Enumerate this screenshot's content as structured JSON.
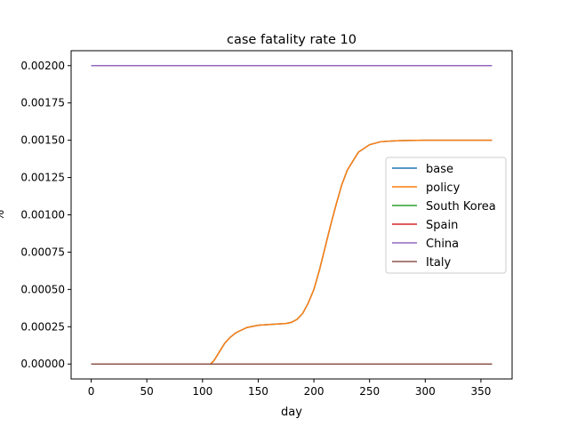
{
  "chart_data": {
    "type": "line",
    "title": "case fatality rate 10",
    "xlabel": "day",
    "ylabel": "%",
    "xlim": [
      -18,
      378
    ],
    "ylim": [
      -0.0001,
      0.0021
    ],
    "xticks": [
      0,
      50,
      100,
      150,
      200,
      250,
      300,
      350
    ],
    "yticks": [
      0.0,
      0.00025,
      0.0005,
      0.00075,
      0.001,
      0.00125,
      0.0015,
      0.00175,
      0.002
    ],
    "ytick_labels": [
      "0.00000",
      "0.00025",
      "0.00050",
      "0.00075",
      "0.00100",
      "0.00125",
      "0.00150",
      "0.00175",
      "0.00200"
    ],
    "grid": false,
    "legend_position": "center-right",
    "series": [
      {
        "name": "base",
        "color": "#1f77b4",
        "x": [
          0,
          100,
          107,
          110,
          115,
          120,
          125,
          130,
          140,
          150,
          160,
          170,
          175,
          180,
          185,
          190,
          195,
          200,
          205,
          210,
          215,
          220,
          225,
          230,
          240,
          250,
          260,
          270,
          280,
          300,
          320,
          340,
          360
        ],
        "y": [
          0.0,
          0.0,
          0.0,
          2e-05,
          8e-05,
          0.00014,
          0.00018,
          0.00021,
          0.000245,
          0.00026,
          0.000265,
          0.00027,
          0.000272,
          0.00028,
          0.0003,
          0.00034,
          0.00041,
          0.0005,
          0.00063,
          0.00078,
          0.00093,
          0.00107,
          0.0012,
          0.0013,
          0.00142,
          0.00147,
          0.00149,
          0.001495,
          0.001498,
          0.0015,
          0.0015,
          0.0015,
          0.0015
        ]
      },
      {
        "name": "policy",
        "color": "#ff7f0e",
        "x": [
          0,
          100,
          107,
          110,
          115,
          120,
          125,
          130,
          140,
          150,
          160,
          170,
          175,
          180,
          185,
          190,
          195,
          200,
          205,
          210,
          215,
          220,
          225,
          230,
          240,
          250,
          260,
          270,
          280,
          300,
          320,
          340,
          360
        ],
        "y": [
          0.0,
          0.0,
          0.0,
          2e-05,
          8e-05,
          0.00014,
          0.00018,
          0.00021,
          0.000245,
          0.00026,
          0.000265,
          0.00027,
          0.000272,
          0.00028,
          0.0003,
          0.00034,
          0.00041,
          0.0005,
          0.00063,
          0.00078,
          0.00093,
          0.00107,
          0.0012,
          0.0013,
          0.00142,
          0.00147,
          0.00149,
          0.001495,
          0.001498,
          0.0015,
          0.0015,
          0.0015,
          0.0015
        ]
      },
      {
        "name": "South Korea",
        "color": "#2ca02c",
        "x": [
          0,
          360
        ],
        "y": [
          0.0,
          0.0
        ]
      },
      {
        "name": "Spain",
        "color": "#d62728",
        "x": [
          0,
          360
        ],
        "y": [
          0.0,
          0.0
        ]
      },
      {
        "name": "China",
        "color": "#9467bd",
        "x": [
          0,
          360
        ],
        "y": [
          0.002,
          0.002
        ]
      },
      {
        "name": "Italy",
        "color": "#8c564b",
        "x": [
          0,
          360
        ],
        "y": [
          0.0,
          0.0
        ]
      }
    ]
  }
}
